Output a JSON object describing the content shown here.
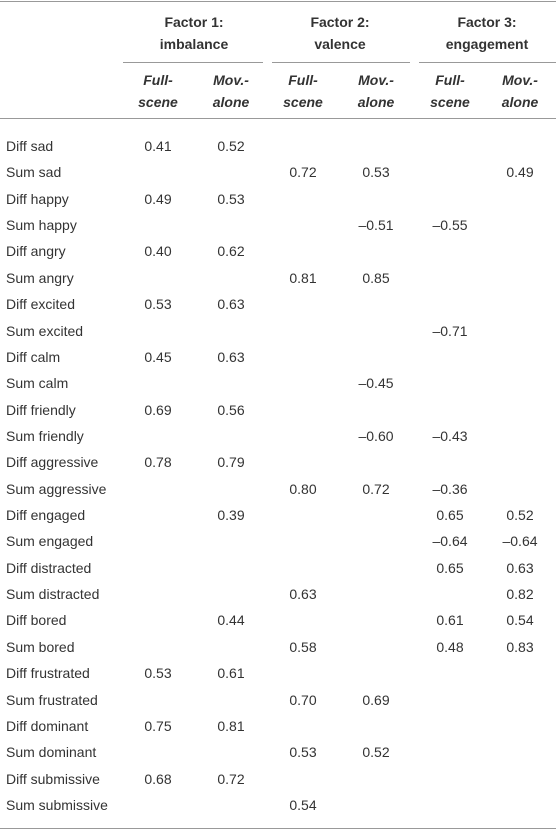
{
  "table": {
    "factor_headers": [
      [
        "Factor 1:",
        "imbalance"
      ],
      [
        "Factor 2:",
        "valence"
      ],
      [
        "Factor 3:",
        "engagement"
      ]
    ],
    "sub_headers": [
      [
        "Full-",
        "scene"
      ],
      [
        "Mov.-",
        "alone"
      ],
      [
        "Full-",
        "scene"
      ],
      [
        "Mov.-",
        "alone"
      ],
      [
        "Full-",
        "scene"
      ],
      [
        "Mov.-",
        "alone"
      ]
    ],
    "rows": [
      [
        "Diff sad",
        "0.41",
        "0.52",
        null,
        null,
        null,
        null
      ],
      [
        "Sum sad",
        null,
        null,
        "0.72",
        "0.53",
        null,
        "0.49"
      ],
      [
        "Diff happy",
        "0.49",
        "0.53",
        null,
        null,
        null,
        null
      ],
      [
        "Sum happy",
        null,
        null,
        null,
        "–0.51",
        "–0.55",
        null
      ],
      [
        "Diff angry",
        "0.40",
        "0.62",
        null,
        null,
        null,
        null
      ],
      [
        "Sum angry",
        null,
        null,
        "0.81",
        "0.85",
        null,
        null
      ],
      [
        "Diff excited",
        "0.53",
        "0.63",
        null,
        null,
        null,
        null
      ],
      [
        "Sum excited",
        null,
        null,
        null,
        null,
        "–0.71",
        null
      ],
      [
        "Diff calm",
        "0.45",
        "0.63",
        null,
        null,
        null,
        null
      ],
      [
        "Sum calm",
        null,
        null,
        null,
        "–0.45",
        null,
        null
      ],
      [
        "Diff friendly",
        "0.69",
        "0.56",
        null,
        null,
        null,
        null
      ],
      [
        "Sum friendly",
        null,
        null,
        null,
        "–0.60",
        "–0.43",
        null
      ],
      [
        "Diff aggressive",
        "0.78",
        "0.79",
        null,
        null,
        null,
        null
      ],
      [
        "Sum aggressive",
        null,
        null,
        "0.80",
        "0.72",
        "–0.36",
        null
      ],
      [
        "Diff engaged",
        null,
        "0.39",
        null,
        null,
        "0.65",
        "0.52"
      ],
      [
        "Sum engaged",
        null,
        null,
        null,
        null,
        "–0.64",
        "–0.64"
      ],
      [
        "Diff distracted",
        null,
        null,
        null,
        null,
        "0.65",
        "0.63"
      ],
      [
        "Sum distracted",
        null,
        null,
        "0.63",
        null,
        null,
        "0.82"
      ],
      [
        "Diff bored",
        null,
        "0.44",
        null,
        null,
        "0.61",
        "0.54"
      ],
      [
        "Sum bored",
        null,
        null,
        "0.58",
        null,
        "0.48",
        "0.83"
      ],
      [
        "Diff frustrated",
        "0.53",
        "0.61",
        null,
        null,
        null,
        null
      ],
      [
        "Sum frustrated",
        null,
        null,
        "0.70",
        "0.69",
        null,
        null
      ],
      [
        "Diff dominant",
        "0.75",
        "0.81",
        null,
        null,
        null,
        null
      ],
      [
        "Sum dominant",
        null,
        null,
        "0.53",
        "0.52",
        null,
        null
      ],
      [
        "Diff submissive",
        "0.68",
        "0.72",
        null,
        null,
        null,
        null
      ],
      [
        "Sum submissive",
        null,
        null,
        "0.54",
        null,
        null,
        null
      ]
    ]
  }
}
